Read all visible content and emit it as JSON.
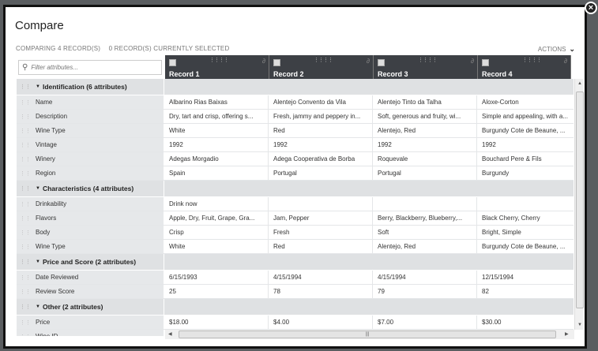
{
  "title": "Compare",
  "status": {
    "comparing": "COMPARING 4 RECORD(S)",
    "selected": "0 RECORD(S) CURRENTLY SELECTED"
  },
  "actions_label": "ACTIONS",
  "filter_placeholder": "Filter attributes...",
  "records": [
    "Record 1",
    "Record 2",
    "Record 3",
    "Record 4"
  ],
  "rows": [
    {
      "group": "Identification (6 attributes)"
    },
    {
      "label": "Name",
      "values": [
        "Albarino Rias Baixas",
        "Alentejo Convento da Vila",
        "Alentejo Tinto da Talha",
        "Aloxe-Corton"
      ]
    },
    {
      "label": "Description",
      "values": [
        "Dry, tart and crisp, offering s...",
        "Fresh, jammy and peppery in...",
        "Soft, generous and fruity, wi...",
        "Simple and appealing, with a..."
      ]
    },
    {
      "label": "Wine Type",
      "values": [
        "White",
        "Red",
        "Alentejo, Red",
        "Burgundy Cote de Beaune, ..."
      ]
    },
    {
      "label": "Vintage",
      "values": [
        "1992",
        "1992",
        "1992",
        "1992"
      ]
    },
    {
      "label": "Winery",
      "values": [
        "Adegas Morgadio",
        "Adega Cooperativa de Borba",
        "Roquevale",
        "Bouchard Pere & Fils"
      ]
    },
    {
      "label": "Region",
      "values": [
        "Spain",
        "Portugal",
        "Portugal",
        "Burgundy"
      ]
    },
    {
      "group": "Characteristics (4 attributes)"
    },
    {
      "label": "Drinkability",
      "values": [
        "Drink now",
        "",
        "",
        ""
      ]
    },
    {
      "label": "Flavors",
      "values": [
        "Apple, Dry, Fruit, Grape, Gra...",
        "Jam, Pepper",
        "Berry, Blackberry, Blueberry,...",
        "Black Cherry, Cherry"
      ]
    },
    {
      "label": "Body",
      "values": [
        "Crisp",
        "Fresh",
        "Soft",
        "Bright, Simple"
      ]
    },
    {
      "label": "Wine Type",
      "values": [
        "White",
        "Red",
        "Alentejo, Red",
        "Burgundy Cote de Beaune, ..."
      ]
    },
    {
      "group": "Price and Score (2 attributes)"
    },
    {
      "label": "Date Reviewed",
      "values": [
        "6/15/1993",
        "4/15/1994",
        "4/15/1994",
        "12/15/1994"
      ]
    },
    {
      "label": "Review Score",
      "values": [
        "25",
        "78",
        "79",
        "82"
      ]
    },
    {
      "group": "Other (2 attributes)"
    },
    {
      "label": "Price",
      "values": [
        "$18.00",
        "$4.00",
        "$7.00",
        "$30.00"
      ]
    },
    {
      "label": "Wine ID",
      "values": [
        "",
        "",
        "",
        ""
      ]
    }
  ]
}
